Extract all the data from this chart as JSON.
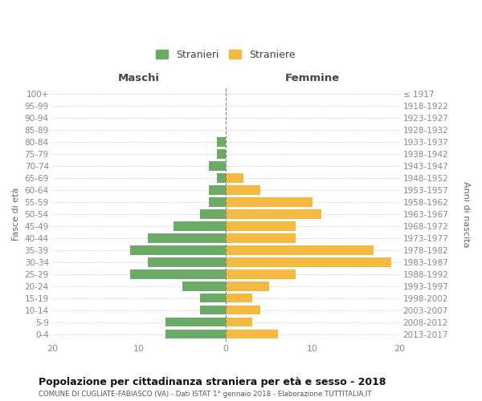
{
  "age_groups": [
    "0-4",
    "5-9",
    "10-14",
    "15-19",
    "20-24",
    "25-29",
    "30-34",
    "35-39",
    "40-44",
    "45-49",
    "50-54",
    "55-59",
    "60-64",
    "65-69",
    "70-74",
    "75-79",
    "80-84",
    "85-89",
    "90-94",
    "95-99",
    "100+"
  ],
  "birth_years": [
    "2013-2017",
    "2008-2012",
    "2003-2007",
    "1998-2002",
    "1993-1997",
    "1988-1992",
    "1983-1987",
    "1978-1982",
    "1973-1977",
    "1968-1972",
    "1963-1967",
    "1958-1962",
    "1953-1957",
    "1948-1952",
    "1943-1947",
    "1938-1942",
    "1933-1937",
    "1928-1932",
    "1923-1927",
    "1918-1922",
    "≤ 1917"
  ],
  "maschi": [
    7,
    7,
    3,
    3,
    5,
    11,
    9,
    11,
    9,
    6,
    3,
    2,
    2,
    1,
    2,
    1,
    1,
    0,
    0,
    0,
    0
  ],
  "femmine": [
    6,
    3,
    4,
    3,
    5,
    8,
    19,
    17,
    8,
    8,
    11,
    10,
    4,
    2,
    0,
    0,
    0,
    0,
    0,
    0,
    0
  ],
  "male_color": "#6aaa64",
  "female_color": "#f5b942",
  "title": "Popolazione per cittadinanza straniera per età e sesso - 2018",
  "subtitle": "COMUNE DI CUGLIATE-FABIASCO (VA) - Dati ISTAT 1° gennaio 2018 - Elaborazione TUTTITALIA.IT",
  "xlabel_left": "Maschi",
  "xlabel_right": "Femmine",
  "ylabel_left": "Fasce di età",
  "ylabel_right": "Anni di nascita",
  "legend_male": "Stranieri",
  "legend_female": "Straniere",
  "xlim": 20,
  "background_color": "#ffffff",
  "grid_color": "#cccccc",
  "axis_label_color": "#666666",
  "tick_color": "#888888"
}
